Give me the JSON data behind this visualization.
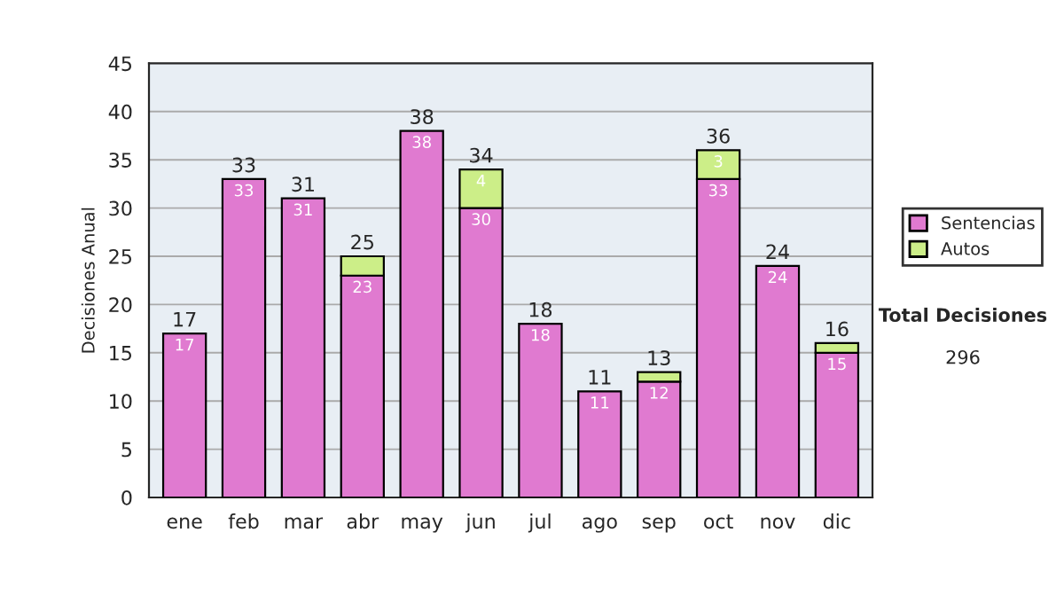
{
  "chart_data": {
    "type": "bar",
    "stacked": true,
    "ylabel": "Decisiones Anual",
    "categories": [
      "ene",
      "feb",
      "mar",
      "abr",
      "may",
      "jun",
      "jul",
      "ago",
      "sep",
      "oct",
      "nov",
      "dic"
    ],
    "series": [
      {
        "name": "Sentencias",
        "color": "#e07ad0",
        "values": [
          17,
          33,
          31,
          23,
          38,
          30,
          18,
          11,
          12,
          33,
          24,
          15
        ],
        "value_labels": [
          "17",
          "33",
          "31",
          "23",
          "38",
          "30",
          "18",
          "11",
          "12",
          "33",
          "24",
          "15"
        ]
      },
      {
        "name": "Autos",
        "color": "#ccee88",
        "values": [
          null,
          null,
          null,
          2,
          null,
          4,
          null,
          null,
          1,
          3,
          null,
          1
        ],
        "value_labels": [
          null,
          null,
          null,
          null,
          null,
          "4",
          null,
          null,
          null,
          "3",
          null,
          null
        ]
      }
    ],
    "totals": [
      "17",
      "33",
      "31",
      "25",
      "38",
      "34",
      "18",
      "11",
      "13",
      "36",
      "24",
      "16"
    ],
    "ylim": [
      0,
      45
    ],
    "yticks": [
      0,
      5,
      10,
      15,
      20,
      25,
      30,
      35,
      40,
      45
    ],
    "grid": "y",
    "legend": "right",
    "annotations": [
      "Total Decisiones",
      "296"
    ]
  }
}
